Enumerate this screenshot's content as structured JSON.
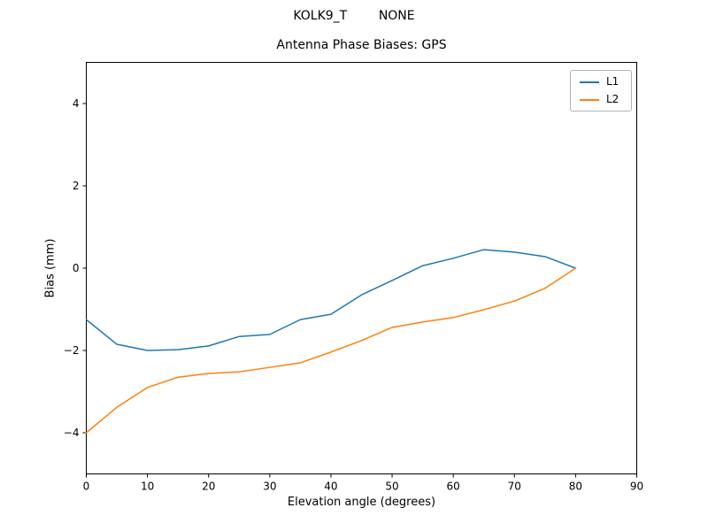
{
  "chart_data": {
    "type": "line",
    "suptitle": "KOLK9_T        NONE",
    "title": "Antenna Phase Biases: GPS",
    "xlabel": "Elevation angle (degrees)",
    "ylabel": "Bias (mm)",
    "xlim": [
      0,
      90
    ],
    "ylim": [
      -5,
      5
    ],
    "xticks": [
      0,
      10,
      20,
      30,
      40,
      50,
      60,
      70,
      80,
      90
    ],
    "yticks": [
      -4,
      -2,
      0,
      2,
      4
    ],
    "grid": false,
    "legend_position": "upper right",
    "x": [
      0,
      5,
      10,
      15,
      20,
      25,
      30,
      35,
      40,
      45,
      50,
      55,
      60,
      65,
      70,
      75,
      80
    ],
    "series": [
      {
        "name": "L1",
        "color": "#1f77b4",
        "values": [
          -1.25,
          -1.85,
          -2.0,
          -1.98,
          -1.89,
          -1.66,
          -1.61,
          -1.25,
          -1.12,
          -0.65,
          -0.3,
          0.06,
          0.24,
          0.45,
          0.39,
          0.28,
          0.0
        ]
      },
      {
        "name": "L2",
        "color": "#ff7f0e",
        "values": [
          -4.0,
          -3.38,
          -2.9,
          -2.65,
          -2.56,
          -2.52,
          -2.41,
          -2.3,
          -2.04,
          -1.76,
          -1.44,
          -1.31,
          -1.2,
          -1.01,
          -0.8,
          -0.49,
          0.0
        ]
      }
    ]
  }
}
